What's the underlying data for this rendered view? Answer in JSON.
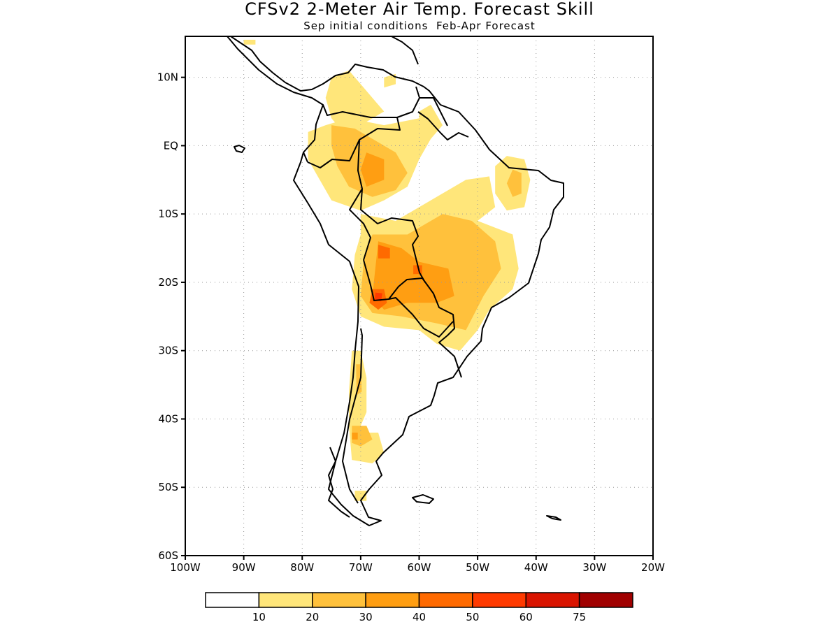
{
  "title": "CFSv2 2-Meter Air Temp. Forecast Skill",
  "subtitle": "Sep initial conditions  Feb-Apr Forecast",
  "axes": {
    "lat_ticks": [
      "10N",
      "EQ",
      "10S",
      "20S",
      "30S",
      "40S",
      "50S",
      "60S"
    ],
    "lat_values": [
      10,
      0,
      -10,
      -20,
      -30,
      -40,
      -50,
      -60
    ],
    "lon_ticks": [
      "100W",
      "90W",
      "80W",
      "70W",
      "60W",
      "50W",
      "40W",
      "30W",
      "20W"
    ],
    "lon_values": [
      -100,
      -90,
      -80,
      -70,
      -60,
      -50,
      -40,
      -30,
      -20
    ],
    "lat_range": [
      -60,
      16
    ],
    "lon_range": [
      -100,
      -20
    ],
    "grid": "dotted"
  },
  "colorbar": {
    "labels": [
      "10",
      "20",
      "30",
      "40",
      "50",
      "60",
      "75"
    ],
    "colors": [
      "#ffffff",
      "#ffe67a",
      "#ffc13c",
      "#ff9e12",
      "#ff6a00",
      "#ff3a00",
      "#d91400",
      "#a00000"
    ]
  },
  "regions": [
    {
      "name": "north-colombia",
      "level": 1,
      "points": [
        [
          -75,
          10
        ],
        [
          -72,
          11
        ],
        [
          -70,
          9
        ],
        [
          -68,
          7
        ],
        [
          -66,
          5
        ],
        [
          -70,
          3
        ],
        [
          -73,
          2
        ],
        [
          -75,
          4
        ],
        [
          -76,
          7
        ]
      ]
    },
    {
      "name": "venezuela-patch",
      "level": 1,
      "points": [
        [
          -66,
          10
        ],
        [
          -64,
          10.5
        ],
        [
          -64,
          9
        ],
        [
          -66,
          8.5
        ]
      ]
    },
    {
      "name": "western-amazon",
      "level": 1,
      "points": [
        [
          -79,
          2
        ],
        [
          -76,
          3
        ],
        [
          -72,
          4
        ],
        [
          -66,
          3
        ],
        [
          -60,
          4
        ],
        [
          -58,
          1
        ],
        [
          -60,
          -2
        ],
        [
          -62,
          -6
        ],
        [
          -66,
          -8
        ],
        [
          -70,
          -9.5
        ],
        [
          -75,
          -8
        ],
        [
          -77,
          -5
        ],
        [
          -79,
          -2
        ]
      ]
    },
    {
      "name": "guyana-patch",
      "level": 1,
      "points": [
        [
          -60,
          5
        ],
        [
          -58,
          6
        ],
        [
          -56,
          3
        ],
        [
          -58,
          1
        ],
        [
          -60,
          2
        ]
      ]
    },
    {
      "name": "western-amazon-core",
      "level": 2,
      "points": [
        [
          -75,
          3
        ],
        [
          -71,
          2.5
        ],
        [
          -68,
          1
        ],
        [
          -64,
          -1
        ],
        [
          -62,
          -4
        ],
        [
          -64,
          -6.5
        ],
        [
          -68,
          -7.5
        ],
        [
          -72,
          -6
        ],
        [
          -74,
          -3
        ],
        [
          -75,
          0
        ]
      ]
    },
    {
      "name": "western-amazon-inner",
      "level": 3,
      "points": [
        [
          -69,
          -1
        ],
        [
          -66,
          -2
        ],
        [
          -66,
          -5
        ],
        [
          -69,
          -6
        ],
        [
          -70,
          -3.5
        ]
      ]
    },
    {
      "name": "northeast-brazil",
      "level": 1,
      "points": [
        [
          -45,
          -1.5
        ],
        [
          -42,
          -2
        ],
        [
          -41,
          -5
        ],
        [
          -42,
          -9
        ],
        [
          -45,
          -9.5
        ],
        [
          -47,
          -7
        ],
        [
          -47,
          -3
        ]
      ]
    },
    {
      "name": "northeast-brazil-core",
      "level": 2,
      "points": [
        [
          -44,
          -3.5
        ],
        [
          -42.5,
          -4
        ],
        [
          -42.5,
          -7
        ],
        [
          -44,
          -7.5
        ],
        [
          -45,
          -5.5
        ]
      ]
    },
    {
      "name": "central-band",
      "level": 1,
      "points": [
        [
          -70,
          -10
        ],
        [
          -64,
          -11
        ],
        [
          -58,
          -8
        ],
        [
          -52,
          -5
        ],
        [
          -48,
          -4.5
        ],
        [
          -47,
          -9
        ],
        [
          -50,
          -11
        ],
        [
          -44,
          -13
        ],
        [
          -43,
          -18
        ],
        [
          -44,
          -21
        ],
        [
          -48,
          -24
        ],
        [
          -50,
          -27
        ],
        [
          -53,
          -30
        ],
        [
          -57,
          -29
        ],
        [
          -60,
          -27
        ],
        [
          -66,
          -26.5
        ],
        [
          -70,
          -25
        ],
        [
          -71.5,
          -21
        ],
        [
          -71,
          -16
        ],
        [
          -70,
          -13
        ]
      ]
    },
    {
      "name": "central-core",
      "level": 2,
      "points": [
        [
          -68,
          -13
        ],
        [
          -62,
          -13
        ],
        [
          -56,
          -10
        ],
        [
          -51,
          -11
        ],
        [
          -47,
          -14
        ],
        [
          -46,
          -18
        ],
        [
          -49,
          -22
        ],
        [
          -52,
          -27
        ],
        [
          -57,
          -26
        ],
        [
          -63,
          -25
        ],
        [
          -68,
          -24.5
        ],
        [
          -70,
          -22
        ],
        [
          -69.5,
          -17
        ]
      ]
    },
    {
      "name": "central-inner",
      "level": 3,
      "points": [
        [
          -67,
          -14
        ],
        [
          -63,
          -15
        ],
        [
          -60,
          -17
        ],
        [
          -55,
          -18
        ],
        [
          -54,
          -22
        ],
        [
          -57,
          -23
        ],
        [
          -62,
          -23
        ],
        [
          -66,
          -24
        ],
        [
          -68,
          -22
        ],
        [
          -67.5,
          -18
        ]
      ]
    },
    {
      "name": "bolivia-hotspot",
      "level": 4,
      "points": [
        [
          -67,
          -14.5
        ],
        [
          -65,
          -15
        ],
        [
          -65,
          -16.5
        ],
        [
          -67,
          -16.5
        ]
      ]
    },
    {
      "name": "chaco-hotspot",
      "level": 4,
      "points": [
        [
          -61,
          -17.5
        ],
        [
          -59.5,
          -17.5
        ],
        [
          -59.5,
          -18.8
        ],
        [
          -61,
          -18.8
        ]
      ]
    },
    {
      "name": "argentina-hotspot",
      "level": 4,
      "points": [
        [
          -68,
          -21
        ],
        [
          -66,
          -21
        ],
        [
          -65.5,
          -23
        ],
        [
          -67,
          -24
        ],
        [
          -68.5,
          -23
        ]
      ]
    },
    {
      "name": "andes-hotspot",
      "level": 5,
      "points": [
        [
          -67.5,
          -21.5
        ],
        [
          -66.3,
          -21.6
        ],
        [
          -66.5,
          -22.8
        ],
        [
          -67.6,
          -22.6
        ]
      ]
    },
    {
      "name": "chile-strip",
      "level": 1,
      "points": [
        [
          -71.5,
          -30
        ],
        [
          -70,
          -30
        ],
        [
          -69,
          -34
        ],
        [
          -69,
          -39
        ],
        [
          -70,
          -41
        ],
        [
          -71,
          -43
        ],
        [
          -69,
          -42
        ],
        [
          -67,
          -42
        ],
        [
          -66,
          -45
        ],
        [
          -68,
          -46.5
        ],
        [
          -71.5,
          -46
        ],
        [
          -72,
          -41
        ],
        [
          -72,
          -36
        ]
      ]
    },
    {
      "name": "chile-core",
      "level": 2,
      "points": [
        [
          -70.8,
          -32
        ],
        [
          -70,
          -32
        ],
        [
          -69.8,
          -36
        ],
        [
          -70.7,
          -36.5
        ]
      ]
    },
    {
      "name": "patagonia-core",
      "level": 2,
      "points": [
        [
          -71.5,
          -41
        ],
        [
          -69,
          -41
        ],
        [
          -68,
          -43
        ],
        [
          -70,
          -44
        ],
        [
          -71.5,
          -43.5
        ]
      ]
    },
    {
      "name": "patagonia-hotspot",
      "level": 3,
      "points": [
        [
          -71.5,
          -42
        ],
        [
          -70.5,
          -42
        ],
        [
          -70.5,
          -43
        ],
        [
          -71.5,
          -43
        ]
      ]
    },
    {
      "name": "southern-tip",
      "level": 1,
      "points": [
        [
          -71,
          -50.5
        ],
        [
          -69,
          -50.5
        ],
        [
          -69,
          -52
        ],
        [
          -71,
          -52
        ]
      ]
    },
    {
      "name": "central-america",
      "level": 1,
      "points": [
        [
          -90,
          15.5
        ],
        [
          -88,
          15.5
        ],
        [
          -88,
          14.8
        ],
        [
          -90,
          14.8
        ]
      ]
    }
  ]
}
